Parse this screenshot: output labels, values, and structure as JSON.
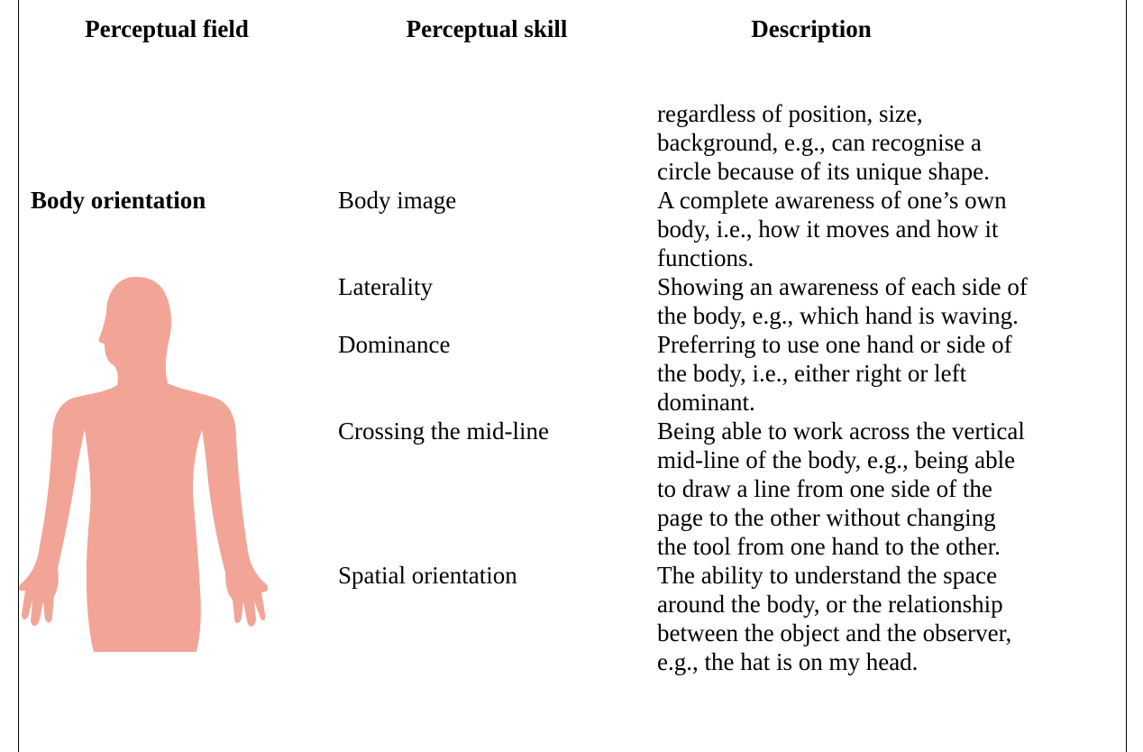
{
  "table": {
    "columns": [
      "Perceptual field",
      "Perceptual skill",
      "Description"
    ],
    "rows": [
      {
        "description": [
          "regardless of position, size,",
          "background, e.g., can recognise a",
          "circle because of its unique shape."
        ]
      },
      {
        "field": "Body orientation",
        "skill": "Body image",
        "description": [
          "A complete awareness of one’s own",
          "body, i.e., how it moves and how it",
          "functions."
        ]
      },
      {
        "skill": "Laterality",
        "description": [
          "Showing an awareness of each side of",
          "the body, e.g., which hand is waving."
        ]
      },
      {
        "skill": "Dominance",
        "description": [
          "Preferring to use one hand or side of",
          "the body, i.e., either right or left",
          "dominant."
        ]
      },
      {
        "skill": "Crossing the mid-line",
        "description": [
          "Being able to work across the vertical",
          "mid-line of the body, e.g., being able",
          "to draw a line from one side of the",
          "page to the other without changing",
          "the tool from one hand to the other."
        ]
      },
      {
        "skill": "Spatial orientation",
        "description": [
          "The ability to understand the space",
          "around the body, or the relationship",
          "between the object and the observer,",
          "e.g., the hat is on my head."
        ]
      }
    ]
  }
}
